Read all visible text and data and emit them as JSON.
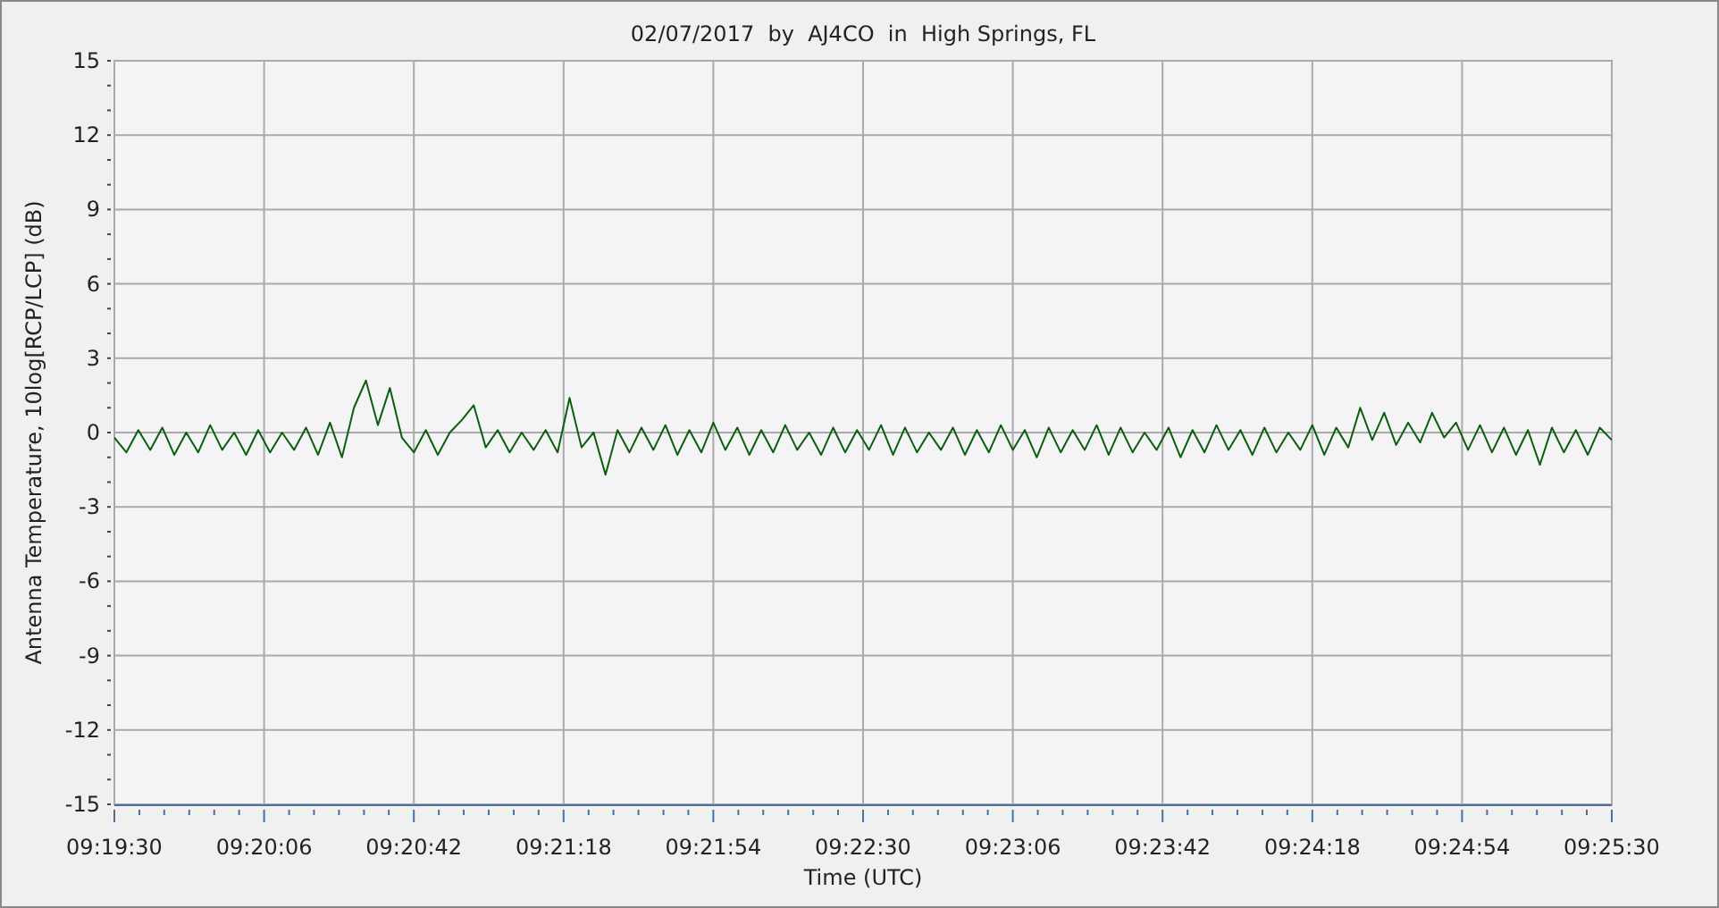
{
  "chart_data": {
    "type": "line",
    "title": "02/07/2017  by  AJ4CO  in  High Springs, FL",
    "xlabel": "Time (UTC)",
    "ylabel": "Antenna Temperature, 10log[RCP/LCP] (dB)",
    "xlim": [
      9.325,
      9.425
    ],
    "xticks": [
      {
        "value": 9.325,
        "label": "09:19:30"
      },
      {
        "value": 9.32667,
        "label": null
      },
      {
        "value": 9.32833,
        "label": null
      },
      {
        "value": 9.33,
        "label": null
      },
      {
        "value": 9.33167,
        "label": null
      },
      {
        "value": 9.33333,
        "label": null
      },
      {
        "value": 9.335,
        "label": "09:20:06"
      },
      {
        "value": 9.33667,
        "label": null
      },
      {
        "value": 9.33833,
        "label": null
      },
      {
        "value": 9.34,
        "label": null
      },
      {
        "value": 9.34167,
        "label": null
      },
      {
        "value": 9.34333,
        "label": null
      },
      {
        "value": 9.345,
        "label": "09:20:42"
      },
      {
        "value": 9.34667,
        "label": null
      },
      {
        "value": 9.34833,
        "label": null
      },
      {
        "value": 9.35,
        "label": null
      },
      {
        "value": 9.35167,
        "label": null
      },
      {
        "value": 9.35333,
        "label": null
      },
      {
        "value": 9.355,
        "label": "09:21:18"
      },
      {
        "value": 9.35667,
        "label": null
      },
      {
        "value": 9.35833,
        "label": null
      },
      {
        "value": 9.36,
        "label": null
      },
      {
        "value": 9.36167,
        "label": null
      },
      {
        "value": 9.36333,
        "label": null
      },
      {
        "value": 9.365,
        "label": "09:21:54"
      },
      {
        "value": 9.36667,
        "label": null
      },
      {
        "value": 9.36833,
        "label": null
      },
      {
        "value": 9.37,
        "label": null
      },
      {
        "value": 9.37167,
        "label": null
      },
      {
        "value": 9.37333,
        "label": null
      },
      {
        "value": 9.375,
        "label": "09:22:30"
      },
      {
        "value": 9.37667,
        "label": null
      },
      {
        "value": 9.37833,
        "label": null
      },
      {
        "value": 9.38,
        "label": null
      },
      {
        "value": 9.38167,
        "label": null
      },
      {
        "value": 9.38333,
        "label": null
      },
      {
        "value": 9.385,
        "label": "09:23:06"
      },
      {
        "value": 9.38667,
        "label": null
      },
      {
        "value": 9.38833,
        "label": null
      },
      {
        "value": 9.39,
        "label": null
      },
      {
        "value": 9.39167,
        "label": null
      },
      {
        "value": 9.39333,
        "label": null
      },
      {
        "value": 9.395,
        "label": "09:23:42"
      },
      {
        "value": 9.39667,
        "label": null
      },
      {
        "value": 9.39833,
        "label": null
      },
      {
        "value": 9.4,
        "label": null
      },
      {
        "value": 9.40167,
        "label": null
      },
      {
        "value": 9.40333,
        "label": null
      },
      {
        "value": 9.405,
        "label": "09:24:18"
      },
      {
        "value": 9.40667,
        "label": null
      },
      {
        "value": 9.40833,
        "label": null
      },
      {
        "value": 9.41,
        "label": null
      },
      {
        "value": 9.41167,
        "label": null
      },
      {
        "value": 9.41333,
        "label": null
      },
      {
        "value": 9.415,
        "label": "09:24:54"
      },
      {
        "value": 9.41667,
        "label": null
      },
      {
        "value": 9.41833,
        "label": null
      },
      {
        "value": 9.42,
        "label": null
      },
      {
        "value": 9.42167,
        "label": null
      },
      {
        "value": 9.42333,
        "label": null
      },
      {
        "value": 9.425,
        "label": "09:25:30"
      }
    ],
    "ylim": [
      -15,
      15
    ],
    "yticks": [
      -15,
      {
        "value": -14,
        "label": null
      },
      {
        "value": -13,
        "label": null
      },
      -12,
      {
        "value": -11,
        "label": null
      },
      {
        "value": -10,
        "label": null
      },
      -9,
      {
        "value": -8,
        "label": null
      },
      {
        "value": -7,
        "label": null
      },
      -6,
      {
        "value": -5,
        "label": null
      },
      {
        "value": -4,
        "label": null
      },
      -3,
      {
        "value": -2,
        "label": null
      },
      {
        "value": -1,
        "label": null
      },
      0,
      {
        "value": 1,
        "label": null
      },
      {
        "value": 2,
        "label": null
      },
      3,
      {
        "value": 4,
        "label": null
      },
      {
        "value": 5,
        "label": null
      },
      6,
      {
        "value": 7,
        "label": null
      },
      {
        "value": 8,
        "label": null
      },
      9,
      {
        "value": 10,
        "label": null
      },
      {
        "value": 11,
        "label": null
      },
      12,
      {
        "value": 13,
        "label": null
      },
      {
        "value": 14,
        "label": null
      },
      15
    ],
    "grid": true,
    "marker": "none",
    "line_style": "solid",
    "x": [
      9.325,
      9.3258,
      9.3266,
      9.3274,
      9.3282,
      9.329,
      9.3298,
      9.3306,
      9.3314,
      9.3322,
      9.333,
      9.3338,
      9.3346,
      9.3354,
      9.3362,
      9.337,
      9.3378,
      9.3386,
      9.3394,
      9.3402,
      9.341,
      9.3418,
      9.3426,
      9.3434,
      9.3442,
      9.345,
      9.3458,
      9.3466,
      9.3474,
      9.3482,
      9.349,
      9.3498,
      9.3506,
      9.3514,
      9.3522,
      9.353,
      9.3538,
      9.3546,
      9.3554,
      9.3562,
      9.357,
      9.3578,
      9.3586,
      9.3594,
      9.3602,
      9.361,
      9.3618,
      9.3626,
      9.3634,
      9.3642,
      9.365,
      9.3658,
      9.3666,
      9.3674,
      9.3682,
      9.369,
      9.3698,
      9.3706,
      9.3714,
      9.3722,
      9.373,
      9.3738,
      9.3746,
      9.3754,
      9.3762,
      9.377,
      9.3778,
      9.3786,
      9.3794,
      9.3802,
      9.381,
      9.3818,
      9.3826,
      9.3834,
      9.3842,
      9.385,
      9.3858,
      9.3866,
      9.3874,
      9.3882,
      9.389,
      9.3898,
      9.3906,
      9.3914,
      9.3922,
      9.393,
      9.3938,
      9.3946,
      9.3954,
      9.3962,
      9.397,
      9.3978,
      9.3986,
      9.3994,
      9.4002,
      9.401,
      9.4018,
      9.4026,
      9.4034,
      9.4042,
      9.405,
      9.4058,
      9.4066,
      9.4074,
      9.4082,
      9.409,
      9.4098,
      9.4106,
      9.4114,
      9.4122,
      9.413,
      9.4138,
      9.4146,
      9.4154,
      9.4162,
      9.417,
      9.4178,
      9.4186,
      9.4194,
      9.4202,
      9.421,
      9.4218,
      9.4226,
      9.4234,
      9.4242,
      9.425
    ],
    "series": [
      {
        "color": "#0b5e0b",
        "values": [
          -0.2,
          -0.8,
          0.1,
          -0.7,
          0.2,
          -0.9,
          0.0,
          -0.8,
          0.3,
          -0.7,
          0.0,
          -0.9,
          0.1,
          -0.8,
          0.0,
          -0.7,
          0.2,
          -0.9,
          0.4,
          -1.0,
          1.0,
          2.1,
          0.3,
          1.8,
          -0.2,
          -0.8,
          0.1,
          -0.9,
          0.0,
          0.5,
          1.1,
          -0.6,
          0.1,
          -0.8,
          0.0,
          -0.7,
          0.1,
          -0.8,
          1.4,
          -0.6,
          0.0,
          -1.7,
          0.1,
          -0.8,
          0.2,
          -0.7,
          0.3,
          -0.9,
          0.1,
          -0.8,
          0.4,
          -0.7,
          0.2,
          -0.9,
          0.1,
          -0.8,
          0.3,
          -0.7,
          0.0,
          -0.9,
          0.2,
          -0.8,
          0.1,
          -0.7,
          0.3,
          -0.9,
          0.2,
          -0.8,
          0.0,
          -0.7,
          0.2,
          -0.9,
          0.1,
          -0.8,
          0.3,
          -0.7,
          0.1,
          -1.0,
          0.2,
          -0.8,
          0.1,
          -0.7,
          0.3,
          -0.9,
          0.2,
          -0.8,
          0.0,
          -0.7,
          0.2,
          -1.0,
          0.1,
          -0.8,
          0.3,
          -0.7,
          0.1,
          -0.9,
          0.2,
          -0.8,
          0.0,
          -0.7,
          0.3,
          -0.9,
          0.2,
          -0.6,
          1.0,
          -0.3,
          0.8,
          -0.5,
          0.4,
          -0.4,
          0.8,
          -0.2,
          0.4,
          -0.7,
          0.3,
          -0.8,
          0.2,
          -0.9,
          0.1,
          -1.3,
          0.2,
          -0.8,
          0.1,
          -0.9,
          0.2,
          -0.3
        ]
      }
    ]
  }
}
